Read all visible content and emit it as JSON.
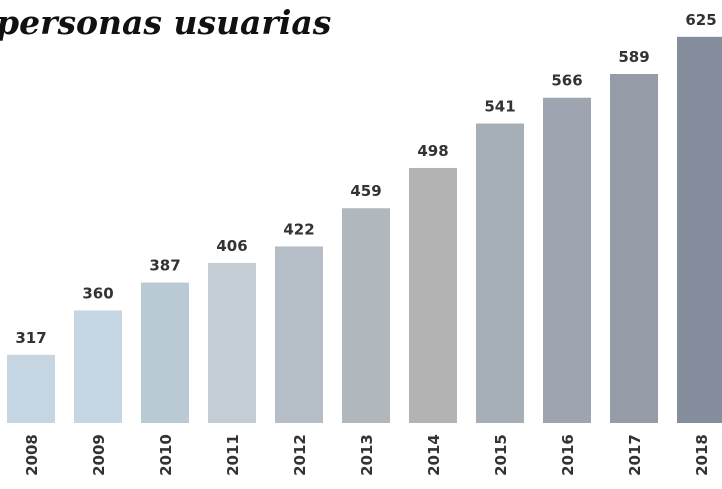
{
  "chart_data": {
    "type": "bar",
    "title": "personas usuarias",
    "categories": [
      "2008",
      "2009",
      "2010",
      "2011",
      "2012",
      "2013",
      "2014",
      "2015",
      "2016",
      "2017",
      "2018"
    ],
    "values": [
      317,
      360,
      387,
      406,
      422,
      459,
      498,
      541,
      566,
      589,
      625
    ],
    "colors": [
      "#c5d5e2",
      "#c5d5e2",
      "#b9cad5",
      "#c4ccd4",
      "#b5bec6",
      "#b0b8bd",
      "#b3b3b3",
      "#a6aeb7",
      "#9ea5b0",
      "#959ba7",
      "#848e9d"
    ],
    "ylim": [
      251,
      650
    ]
  }
}
